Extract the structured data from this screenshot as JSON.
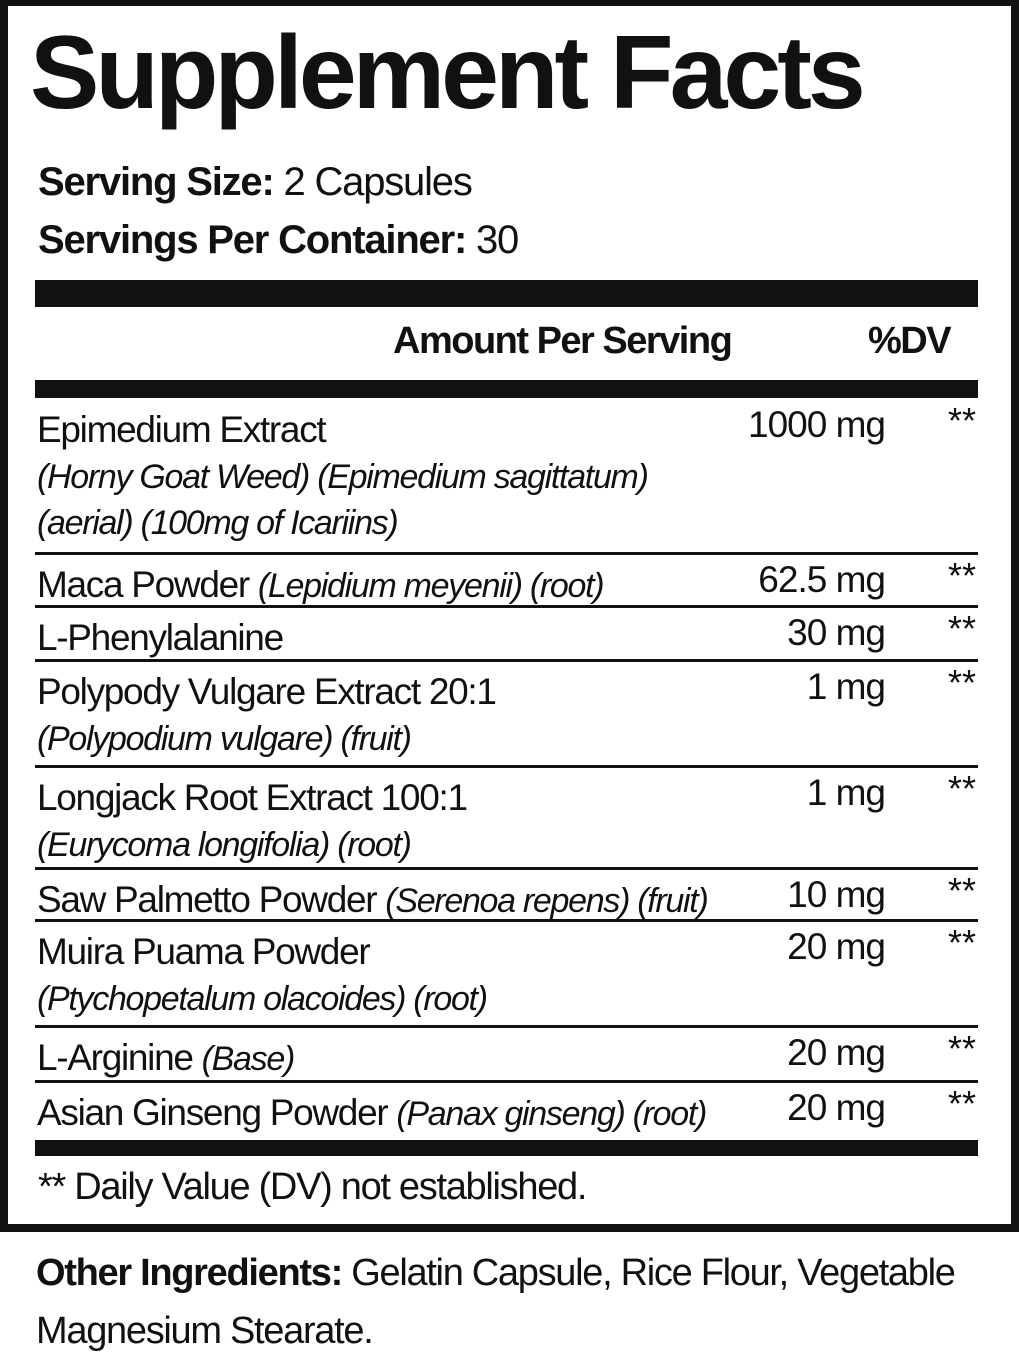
{
  "title": "Supplement Facts",
  "serving_size": {
    "label": "Serving Size:",
    "value": "2 Capsules"
  },
  "servings_per_container": {
    "label": "Servings Per Container:",
    "value": "30"
  },
  "header": {
    "amount": "Amount Per Serving",
    "dv": "%DV"
  },
  "rows": [
    {
      "name": "Epimedium Extract",
      "detail": "",
      "sub1": "(Horny Goat Weed) (Epimedium sagittatum)",
      "sub2": "(aerial) (100mg of Icariins)",
      "amount": "1000 mg",
      "dv": "**"
    },
    {
      "name": "Maca Powder",
      "detail": "(Lepidium meyenii) (root)",
      "amount": "62.5 mg",
      "dv": "**"
    },
    {
      "name": "L-Phenylalanine",
      "detail": "",
      "amount": "30 mg",
      "dv": "**"
    },
    {
      "name": "Polypody Vulgare Extract 20:1",
      "detail": "",
      "sub1": "(Polypodium vulgare) (fruit)",
      "amount": "1 mg",
      "dv": "**"
    },
    {
      "name": "Longjack Root Extract 100:1",
      "detail": "",
      "sub1": "(Eurycoma longifolia) (root)",
      "amount": "1 mg",
      "dv": "**"
    },
    {
      "name": "Saw Palmetto Powder",
      "detail": "(Serenoa repens) (fruit)",
      "amount": "10 mg",
      "dv": "**"
    },
    {
      "name": "Muira Puama Powder",
      "detail": "",
      "sub1": "(Ptychopetalum olacoides) (root)",
      "amount": "20 mg",
      "dv": "**"
    },
    {
      "name": "L-Arginine",
      "detail": "(Base)",
      "amount": "20 mg",
      "dv": "**"
    },
    {
      "name": "Asian Ginseng Powder",
      "detail": "(Panax ginseng) (root)",
      "amount": "20 mg",
      "dv": "**"
    }
  ],
  "footnote": "** Daily Value (DV) not established.",
  "other_ingredients": {
    "label": "Other Ingredients:",
    "value": "Gelatin Capsule, Rice Flour, Vegetable Magnesium Stearate."
  }
}
